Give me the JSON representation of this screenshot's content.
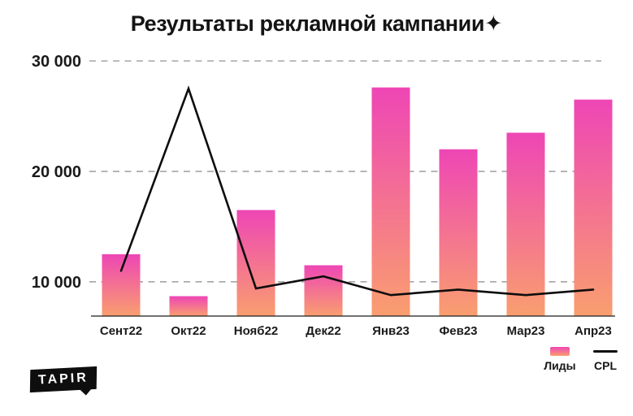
{
  "title": "Результаты рекламной кампании✦",
  "logo": {
    "text": "TAPIR"
  },
  "legend": {
    "bars_label": "Лиды",
    "line_label": "CPL"
  },
  "colors": {
    "bar_gradient_top": "#ee46b5",
    "bar_gradient_bottom": "#f99e6f",
    "cpl_line": "#0d0d0d",
    "gridline": "#a5a5a5",
    "axis": "#1c1c1c",
    "text": "#161616"
  },
  "chart_data": {
    "type": "bar",
    "title": "Результаты рекламной кампании",
    "categories": [
      "Сент22",
      "Окт22",
      "Нояб22",
      "Дек22",
      "Янв23",
      "Фев23",
      "Мар23",
      "Апр23"
    ],
    "series": [
      {
        "name": "Лиды",
        "type": "bar",
        "values": [
          12500,
          8700,
          16500,
          11500,
          27600,
          22000,
          23500,
          26500
        ]
      },
      {
        "name": "CPL",
        "type": "line",
        "values": [
          11000,
          27500,
          9400,
          10500,
          8800,
          9300,
          8800,
          9300
        ]
      }
    ],
    "yticks": [
      {
        "value": 10000,
        "label": "10 000"
      },
      {
        "value": 20000,
        "label": "20 000"
      },
      {
        "value": 30000,
        "label": "30 000"
      }
    ],
    "ylim": [
      6900,
      30000
    ],
    "xlabel": "",
    "ylabel": "",
    "grid": "horizontal-dashed",
    "legend_position": "bottom-right"
  }
}
